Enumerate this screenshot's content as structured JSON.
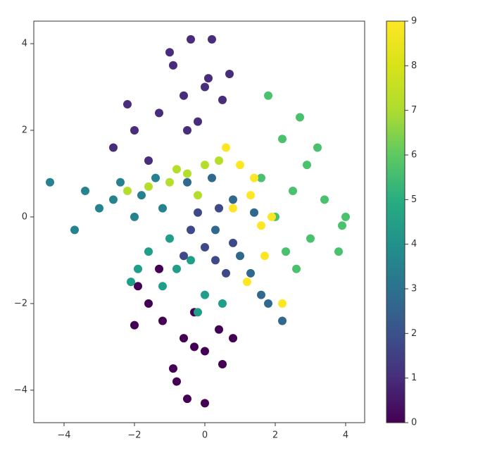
{
  "chart_data": {
    "type": "scatter",
    "xlim": [
      -4.86,
      4.54
    ],
    "ylim": [
      -4.75,
      4.52
    ],
    "xticks": [
      {
        "value": -4,
        "label": "−4"
      },
      {
        "value": -2,
        "label": "−2"
      },
      0,
      2,
      4
    ],
    "yticks": [
      {
        "value": -4,
        "label": "−4"
      },
      {
        "value": -2,
        "label": "−2"
      },
      0,
      2,
      4
    ],
    "clim": [
      0,
      9
    ],
    "cticks": [
      0,
      1,
      2,
      3,
      4,
      5,
      6,
      7,
      8,
      9
    ],
    "colormap": [
      "#440154",
      "#472d7b",
      "#3b528b",
      "#2c728e",
      "#21918c",
      "#28ae80",
      "#5ec962",
      "#addc30",
      "#d8e219",
      "#fde725"
    ],
    "series": [
      {
        "color": "#440154",
        "x": [
          -0.6,
          -1.2,
          0.0,
          -1.6,
          0.4,
          -0.9,
          -0.3,
          -2.0,
          0.5,
          -0.5,
          -1.3,
          0.0,
          -0.8,
          -1.9,
          0.8,
          -0.3
        ],
        "y": [
          -2.8,
          -2.4,
          -3.1,
          -2.0,
          -2.6,
          -3.5,
          -2.2,
          -2.5,
          -3.4,
          -4.2,
          -1.2,
          -4.3,
          -3.8,
          -1.6,
          -2.8,
          -3.0
        ]
      },
      {
        "color": "#472d7b",
        "x": [
          -0.6,
          -1.3,
          0.1,
          -2.0,
          0.5,
          -0.9,
          -0.2,
          -2.2,
          0.7,
          -0.4,
          -1.6,
          0.2,
          -1.0,
          -2.6,
          -0.5,
          0.0
        ],
        "y": [
          2.8,
          2.4,
          3.2,
          2.0,
          2.7,
          3.5,
          2.2,
          2.6,
          3.3,
          4.1,
          1.3,
          4.1,
          3.8,
          1.6,
          2.0,
          3.0
        ]
      },
      {
        "color": "#4ac16d",
        "x": [
          2.5,
          2.9,
          2.0,
          3.4,
          2.2,
          3.0,
          1.6,
          2.7,
          3.8,
          2.3,
          1.8,
          4.0,
          3.2,
          2.6,
          3.9
        ],
        "y": [
          0.6,
          1.2,
          0.0,
          0.4,
          1.8,
          -0.5,
          0.9,
          2.3,
          -0.8,
          -0.8,
          2.8,
          0.0,
          1.6,
          -1.2,
          -0.2
        ]
      },
      {
        "color": "#26828e",
        "x": [
          -1.8,
          -2.4,
          -3.0,
          -4.4,
          -3.4,
          -1.2,
          -2.0,
          -2.6,
          -1.4,
          -3.7
        ],
        "y": [
          0.5,
          0.8,
          0.2,
          0.8,
          0.6,
          0.2,
          0.0,
          0.4,
          0.9,
          -0.3
        ]
      },
      {
        "color": "#fde725",
        "x": [
          1.3,
          1.0,
          1.6,
          0.8,
          1.9,
          1.4,
          1.2,
          0.6,
          1.7,
          2.2
        ],
        "y": [
          0.5,
          1.2,
          -0.2,
          0.2,
          0.0,
          0.9,
          -1.5,
          1.6,
          -0.9,
          -2.0
        ]
      },
      {
        "color": "#b5de2b",
        "x": [
          -0.5,
          -1.0,
          0.0,
          -1.6,
          0.4,
          -0.8,
          -0.2,
          -2.2
        ],
        "y": [
          1.0,
          0.8,
          1.2,
          0.7,
          1.3,
          1.1,
          0.5,
          0.6
        ]
      },
      {
        "color": "#31688e",
        "x": [
          0.3,
          0.8,
          1.3,
          1.6,
          1.8,
          -0.5,
          1.0,
          2.2,
          0.2,
          1.4
        ],
        "y": [
          -0.3,
          0.4,
          -1.3,
          -1.8,
          -2.0,
          0.8,
          -0.9,
          -2.4,
          0.9,
          0.1
        ]
      },
      {
        "color": "#1f9e89",
        "x": [
          -0.8,
          -1.6,
          -1.2,
          0.0,
          -0.4,
          -1.9,
          0.5,
          -1.0,
          -2.1,
          -0.2
        ],
        "y": [
          -1.2,
          -0.8,
          -1.6,
          -1.8,
          -1.0,
          -1.2,
          -2.0,
          -0.5,
          -1.5,
          -2.2
        ]
      },
      {
        "color": "#3e4989",
        "x": [
          0.0,
          -0.4,
          0.3,
          0.6,
          -0.2,
          0.8,
          -0.6,
          0.4
        ],
        "y": [
          -0.7,
          -0.3,
          -1.0,
          -1.3,
          0.1,
          -0.6,
          -0.9,
          0.2
        ]
      }
    ]
  }
}
